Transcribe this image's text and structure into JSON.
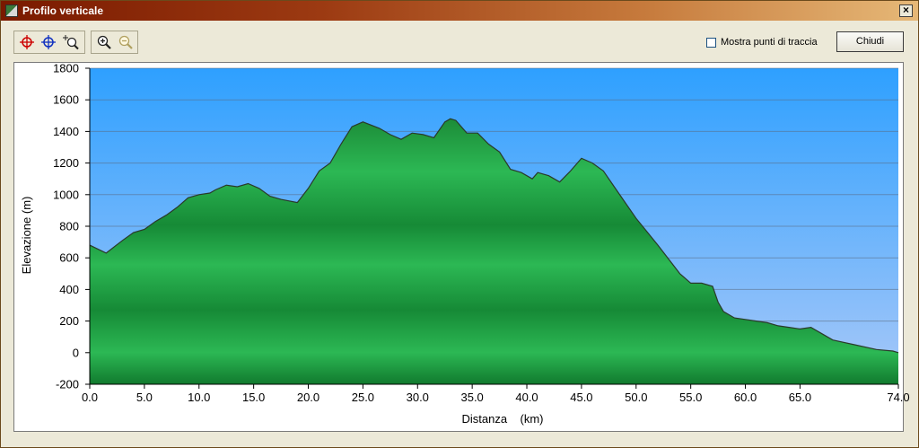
{
  "window": {
    "title": "Profilo verticale",
    "close_label": "×"
  },
  "toolbar": {
    "tools": [
      {
        "name": "red-crosshair-icon",
        "color": "#cc0000"
      },
      {
        "name": "blue-crosshair-icon",
        "color": "#1030c0"
      },
      {
        "name": "zoom-select-icon",
        "color": "#202020"
      },
      {
        "name": "zoom-in-icon",
        "color": "#202020"
      },
      {
        "name": "zoom-out-icon",
        "color": "#b0a060"
      }
    ]
  },
  "options": {
    "show_track_points_label": "Mostra punti di traccia",
    "show_track_points_checked": false
  },
  "buttons": {
    "close_label": "Chiudi"
  },
  "chart_data": {
    "type": "area",
    "xlabel": "Distanza    (km)",
    "ylabel": "Elevazione (m)",
    "xlim": [
      0,
      74
    ],
    "ylim": [
      -200,
      1800
    ],
    "xticks": [
      "0.0",
      "5.0",
      "10.0",
      "15.0",
      "20.0",
      "25.0",
      "30.0",
      "35.0",
      "40.0",
      "45.0",
      "50.0",
      "55.0",
      "60.0",
      "65.0",
      "74.0"
    ],
    "xtick_values": [
      0,
      5,
      10,
      15,
      20,
      25,
      30,
      35,
      40,
      45,
      50,
      55,
      60,
      65,
      74
    ],
    "yticks": [
      "1800",
      "1600",
      "1400",
      "1200",
      "1000",
      "800",
      "600",
      "400",
      "200",
      "0",
      "-200"
    ],
    "ytick_values": [
      1800,
      1600,
      1400,
      1200,
      1000,
      800,
      600,
      400,
      200,
      0,
      -200
    ],
    "grid": true,
    "colors": {
      "sky_top": "#2ea0ff",
      "sky_bottom": "#a8c8f8",
      "fill": "#22a84a",
      "outline": "#2a3a2a"
    },
    "series": [
      {
        "x": [
          0,
          1.5,
          3,
          4,
          5,
          6,
          7,
          8,
          9,
          10,
          11,
          11.5,
          12.5,
          13.5,
          14.5,
          15.5,
          16.5,
          17.5,
          19,
          20,
          21,
          22,
          23,
          24,
          25,
          26.5,
          27.5,
          28.5,
          29.5,
          30.5,
          31.5,
          32.5,
          33,
          33.5,
          34.5,
          35.5,
          36.5,
          37.5,
          38.5,
          39.5,
          40.5,
          41,
          42,
          43,
          44,
          45,
          46,
          47,
          48,
          49,
          50,
          52,
          54,
          55,
          56,
          57,
          57.5,
          58,
          59,
          60,
          61,
          62,
          63,
          64,
          65,
          66,
          67,
          68,
          70,
          72,
          73.5,
          74
        ],
        "y": [
          680,
          630,
          710,
          760,
          780,
          830,
          870,
          920,
          980,
          1000,
          1010,
          1030,
          1060,
          1050,
          1070,
          1040,
          990,
          970,
          950,
          1040,
          1150,
          1200,
          1320,
          1430,
          1460,
          1420,
          1380,
          1350,
          1390,
          1380,
          1360,
          1460,
          1480,
          1470,
          1390,
          1390,
          1320,
          1270,
          1160,
          1140,
          1100,
          1140,
          1120,
          1080,
          1150,
          1230,
          1200,
          1150,
          1050,
          950,
          850,
          680,
          500,
          440,
          440,
          420,
          320,
          260,
          220,
          210,
          200,
          190,
          170,
          160,
          150,
          160,
          120,
          80,
          50,
          20,
          10,
          0
        ]
      }
    ]
  }
}
